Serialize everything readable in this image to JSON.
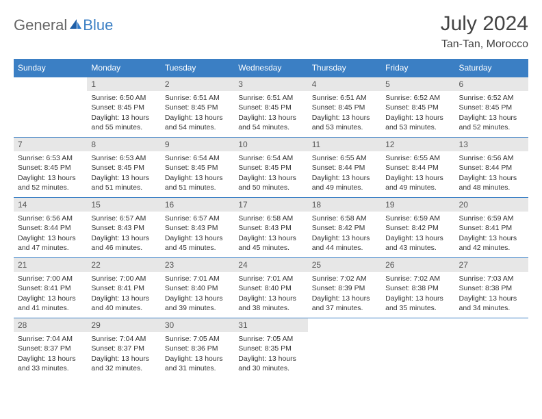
{
  "brand": {
    "part1": "General",
    "part2": "Blue"
  },
  "title": "July 2024",
  "location": "Tan-Tan, Morocco",
  "colors": {
    "header_bg": "#3b7fc4",
    "header_fg": "#ffffff",
    "daynum_bg": "#e7e7e7",
    "border": "#3b7fc4",
    "text": "#333333"
  },
  "weekdays": [
    "Sunday",
    "Monday",
    "Tuesday",
    "Wednesday",
    "Thursday",
    "Friday",
    "Saturday"
  ],
  "start_offset": 1,
  "days": [
    {
      "n": 1,
      "sr": "6:50 AM",
      "ss": "8:45 PM",
      "dl": "13 hours and 55 minutes."
    },
    {
      "n": 2,
      "sr": "6:51 AM",
      "ss": "8:45 PM",
      "dl": "13 hours and 54 minutes."
    },
    {
      "n": 3,
      "sr": "6:51 AM",
      "ss": "8:45 PM",
      "dl": "13 hours and 54 minutes."
    },
    {
      "n": 4,
      "sr": "6:51 AM",
      "ss": "8:45 PM",
      "dl": "13 hours and 53 minutes."
    },
    {
      "n": 5,
      "sr": "6:52 AM",
      "ss": "8:45 PM",
      "dl": "13 hours and 53 minutes."
    },
    {
      "n": 6,
      "sr": "6:52 AM",
      "ss": "8:45 PM",
      "dl": "13 hours and 52 minutes."
    },
    {
      "n": 7,
      "sr": "6:53 AM",
      "ss": "8:45 PM",
      "dl": "13 hours and 52 minutes."
    },
    {
      "n": 8,
      "sr": "6:53 AM",
      "ss": "8:45 PM",
      "dl": "13 hours and 51 minutes."
    },
    {
      "n": 9,
      "sr": "6:54 AM",
      "ss": "8:45 PM",
      "dl": "13 hours and 51 minutes."
    },
    {
      "n": 10,
      "sr": "6:54 AM",
      "ss": "8:45 PM",
      "dl": "13 hours and 50 minutes."
    },
    {
      "n": 11,
      "sr": "6:55 AM",
      "ss": "8:44 PM",
      "dl": "13 hours and 49 minutes."
    },
    {
      "n": 12,
      "sr": "6:55 AM",
      "ss": "8:44 PM",
      "dl": "13 hours and 49 minutes."
    },
    {
      "n": 13,
      "sr": "6:56 AM",
      "ss": "8:44 PM",
      "dl": "13 hours and 48 minutes."
    },
    {
      "n": 14,
      "sr": "6:56 AM",
      "ss": "8:44 PM",
      "dl": "13 hours and 47 minutes."
    },
    {
      "n": 15,
      "sr": "6:57 AM",
      "ss": "8:43 PM",
      "dl": "13 hours and 46 minutes."
    },
    {
      "n": 16,
      "sr": "6:57 AM",
      "ss": "8:43 PM",
      "dl": "13 hours and 45 minutes."
    },
    {
      "n": 17,
      "sr": "6:58 AM",
      "ss": "8:43 PM",
      "dl": "13 hours and 45 minutes."
    },
    {
      "n": 18,
      "sr": "6:58 AM",
      "ss": "8:42 PM",
      "dl": "13 hours and 44 minutes."
    },
    {
      "n": 19,
      "sr": "6:59 AM",
      "ss": "8:42 PM",
      "dl": "13 hours and 43 minutes."
    },
    {
      "n": 20,
      "sr": "6:59 AM",
      "ss": "8:41 PM",
      "dl": "13 hours and 42 minutes."
    },
    {
      "n": 21,
      "sr": "7:00 AM",
      "ss": "8:41 PM",
      "dl": "13 hours and 41 minutes."
    },
    {
      "n": 22,
      "sr": "7:00 AM",
      "ss": "8:41 PM",
      "dl": "13 hours and 40 minutes."
    },
    {
      "n": 23,
      "sr": "7:01 AM",
      "ss": "8:40 PM",
      "dl": "13 hours and 39 minutes."
    },
    {
      "n": 24,
      "sr": "7:01 AM",
      "ss": "8:40 PM",
      "dl": "13 hours and 38 minutes."
    },
    {
      "n": 25,
      "sr": "7:02 AM",
      "ss": "8:39 PM",
      "dl": "13 hours and 37 minutes."
    },
    {
      "n": 26,
      "sr": "7:02 AM",
      "ss": "8:38 PM",
      "dl": "13 hours and 35 minutes."
    },
    {
      "n": 27,
      "sr": "7:03 AM",
      "ss": "8:38 PM",
      "dl": "13 hours and 34 minutes."
    },
    {
      "n": 28,
      "sr": "7:04 AM",
      "ss": "8:37 PM",
      "dl": "13 hours and 33 minutes."
    },
    {
      "n": 29,
      "sr": "7:04 AM",
      "ss": "8:37 PM",
      "dl": "13 hours and 32 minutes."
    },
    {
      "n": 30,
      "sr": "7:05 AM",
      "ss": "8:36 PM",
      "dl": "13 hours and 31 minutes."
    },
    {
      "n": 31,
      "sr": "7:05 AM",
      "ss": "8:35 PM",
      "dl": "13 hours and 30 minutes."
    }
  ],
  "labels": {
    "sunrise": "Sunrise:",
    "sunset": "Sunset:",
    "daylight": "Daylight:"
  }
}
